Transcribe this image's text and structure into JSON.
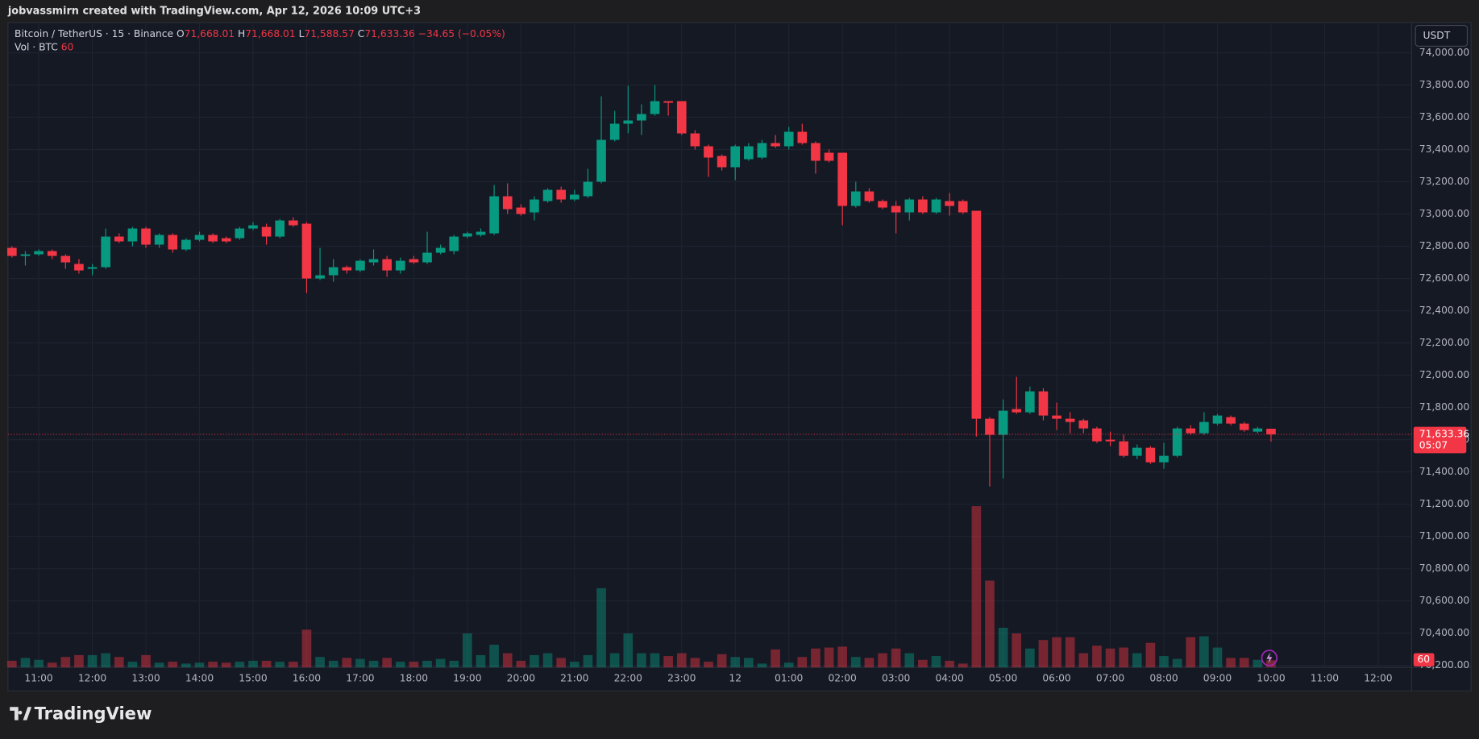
{
  "header": {
    "text": "jobvassmirn created with TradingView.com, Apr 12, 2026 10:09 UTC+3"
  },
  "legend": {
    "symbol": "Bitcoin / TetherUS · 15 · Binance",
    "o_key": "O",
    "o": "71,668.01",
    "h_key": "H",
    "h": "71,668.01",
    "l_key": "L",
    "l": "71,588.57",
    "c_key": "C",
    "c": "71,633.36",
    "change": "−34.65 (−0.05%)",
    "volume_name": "Vol · BTC"
  },
  "currency": "USDT",
  "last_price_label": "71,633.36",
  "countdown": "05:07",
  "footer": {
    "brand": "TradingView"
  },
  "chart_data": {
    "type": "candlestick",
    "up_color": "#089981",
    "down_color": "#f23645",
    "grid": true,
    "xlim": [
      -0.3,
      104.5
    ],
    "xticks": [
      {
        "value": 2,
        "label": "11:00"
      },
      {
        "value": 6,
        "label": "12:00"
      },
      {
        "value": 10,
        "label": "13:00"
      },
      {
        "value": 14,
        "label": "14:00"
      },
      {
        "value": 18,
        "label": "15:00"
      },
      {
        "value": 22,
        "label": "16:00"
      },
      {
        "value": 26,
        "label": "17:00"
      },
      {
        "value": 30,
        "label": "18:00"
      },
      {
        "value": 34,
        "label": "19:00"
      },
      {
        "value": 38,
        "label": "20:00"
      },
      {
        "value": 42,
        "label": "21:00"
      },
      {
        "value": 46,
        "label": "22:00"
      },
      {
        "value": 50,
        "label": "23:00"
      },
      {
        "value": 54,
        "label": "12"
      },
      {
        "value": 58,
        "label": "01:00"
      },
      {
        "value": 62,
        "label": "02:00"
      },
      {
        "value": 66,
        "label": "03:00"
      },
      {
        "value": 70,
        "label": "04:00"
      },
      {
        "value": 74,
        "label": "05:00"
      },
      {
        "value": 78,
        "label": "06:00"
      },
      {
        "value": 82,
        "label": "07:00"
      },
      {
        "value": 86,
        "label": "08:00"
      },
      {
        "value": 90,
        "label": "09:00"
      },
      {
        "value": 94,
        "label": "10:00"
      },
      {
        "value": 98,
        "label": "11:00"
      },
      {
        "value": 102,
        "label": "12:00"
      }
    ],
    "ylim": [
      70188,
      74187
    ],
    "yticks": [
      {
        "value": 70200,
        "label": "70,200.00"
      },
      {
        "value": 70400,
        "label": "70,400.00"
      },
      {
        "value": 70600,
        "label": "70,600.00"
      },
      {
        "value": 70800,
        "label": "70,800.00"
      },
      {
        "value": 71000,
        "label": "71,000.00"
      },
      {
        "value": 71200,
        "label": "71,200.00"
      },
      {
        "value": 71400,
        "label": "71,400.00"
      },
      {
        "value": 71600,
        "label": "71,600.00"
      },
      {
        "value": 71800,
        "label": "71,800.00"
      },
      {
        "value": 72000,
        "label": "72,000.00"
      },
      {
        "value": 72200,
        "label": "72,200.00"
      },
      {
        "value": 72400,
        "label": "72,400.00"
      },
      {
        "value": 72600,
        "label": "72,600.00"
      },
      {
        "value": 72800,
        "label": "72,800.00"
      },
      {
        "value": 73000,
        "label": "73,000.00"
      },
      {
        "value": 73200,
        "label": "73,200.00"
      },
      {
        "value": 73400,
        "label": "73,400.00"
      },
      {
        "value": 73600,
        "label": "73,600.00"
      },
      {
        "value": 73800,
        "label": "73,800.00"
      },
      {
        "value": 74000,
        "label": "74,000.00"
      }
    ],
    "open": [
      72790,
      72740,
      72750,
      72770,
      72740,
      72690,
      72660,
      72670,
      72860,
      72830,
      72910,
      72810,
      72870,
      72780,
      72840,
      72870,
      72850,
      72850,
      72910,
      72920,
      72860,
      72960,
      72940,
      72600,
      72620,
      72670,
      72650,
      72700,
      72720,
      72650,
      72720,
      72700,
      72760,
      72770,
      72860,
      72870,
      72880,
      73110,
      73040,
      73010,
      73080,
      73150,
      73090,
      73110,
      73200,
      73460,
      73560,
      73580,
      73620,
      73700,
      73700,
      73500,
      73420,
      73360,
      73290,
      73340,
      73350,
      73440,
      73420,
      73510,
      73440,
      73380,
      73380,
      73050,
      73140,
      73080,
      73050,
      73010,
      73090,
      73010,
      73080,
      73080,
      73020,
      71730,
      71630,
      71790,
      71770,
      71900,
      71750,
      71730,
      71720,
      71670,
      71600,
      71590,
      71500,
      71550,
      71460,
      71500,
      71670,
      71640,
      71700,
      71740,
      71700,
      71650,
      71668.01
    ],
    "high": [
      72800,
      72770,
      72780,
      72780,
      72750,
      72720,
      72690,
      72910,
      72880,
      72920,
      72920,
      72880,
      72880,
      72850,
      72890,
      72880,
      72860,
      72920,
      72950,
      72940,
      72970,
      72980,
      72950,
      72790,
      72720,
      72680,
      72720,
      72780,
      72740,
      72730,
      72740,
      72890,
      72810,
      72870,
      72890,
      72910,
      73180,
      73190,
      73060,
      73110,
      73160,
      73170,
      73150,
      73280,
      73730,
      73640,
      73795,
      73680,
      73800,
      73700,
      73700,
      73520,
      73430,
      73370,
      73430,
      73440,
      73460,
      73490,
      73540,
      73560,
      73450,
      73400,
      73380,
      73200,
      73160,
      73090,
      73080,
      73100,
      73110,
      73100,
      73130,
      73090,
      73020,
      71740,
      71850,
      71990,
      71930,
      71920,
      71830,
      71770,
      71730,
      71680,
      71650,
      71630,
      71570,
      71560,
      71580,
      71680,
      71690,
      71770,
      71760,
      71750,
      71710,
      71680,
      71668.01
    ],
    "low": [
      72730,
      72680,
      72740,
      72720,
      72660,
      72630,
      72620,
      72660,
      72820,
      72800,
      72790,
      72790,
      72760,
      72770,
      72830,
      72820,
      72820,
      72840,
      72900,
      72810,
      72850,
      72920,
      72510,
      72590,
      72580,
      72630,
      72640,
      72680,
      72610,
      72630,
      72690,
      72690,
      72750,
      72750,
      72850,
      72860,
      72870,
      73000,
      72990,
      72960,
      73070,
      73070,
      73080,
      73100,
      73190,
      73450,
      73500,
      73490,
      73610,
      73610,
      73490,
      73400,
      73230,
      73270,
      73210,
      73330,
      73340,
      73410,
      73400,
      73430,
      73250,
      73320,
      72930,
      73040,
      73070,
      73030,
      72880,
      72960,
      73000,
      73000,
      72990,
      73000,
      71620,
      71310,
      71360,
      71760,
      71760,
      71720,
      71660,
      71640,
      71640,
      71580,
      71560,
      71490,
      71480,
      71450,
      71420,
      71490,
      71630,
      71630,
      71690,
      71690,
      71650,
      71640,
      71588.57
    ],
    "close": [
      72740,
      72750,
      72770,
      72740,
      72700,
      72650,
      72670,
      72860,
      72830,
      72910,
      72810,
      72870,
      72780,
      72840,
      72870,
      72830,
      72830,
      72910,
      72930,
      72860,
      72960,
      72930,
      72600,
      72620,
      72670,
      72650,
      72710,
      72720,
      72650,
      72710,
      72700,
      72760,
      72790,
      72860,
      72880,
      72890,
      73110,
      73030,
      73000,
      73090,
      73150,
      73090,
      73120,
      73200,
      73460,
      73560,
      73580,
      73620,
      73700,
      73690,
      73500,
      73420,
      73350,
      73290,
      73420,
      73420,
      73440,
      73420,
      73510,
      73440,
      73330,
      73330,
      73050,
      73140,
      73080,
      73040,
      73010,
      73090,
      73010,
      73090,
      73050,
      73010,
      71730,
      71630,
      71780,
      71770,
      71900,
      71750,
      71730,
      71710,
      71670,
      71590,
      71590,
      71500,
      71550,
      71460,
      71500,
      71670,
      71640,
      71710,
      71750,
      71700,
      71660,
      71670,
      71633.36
    ],
    "volume": [
      56,
      80,
      64,
      40,
      88,
      104,
      104,
      120,
      88,
      48,
      104,
      40,
      48,
      32,
      40,
      48,
      40,
      48,
      56,
      56,
      48,
      48,
      320,
      88,
      56,
      80,
      72,
      56,
      80,
      48,
      48,
      56,
      72,
      56,
      288,
      104,
      192,
      120,
      56,
      104,
      120,
      80,
      48,
      104,
      672,
      120,
      288,
      120,
      120,
      96,
      120,
      80,
      48,
      112,
      88,
      80,
      32,
      152,
      40,
      88,
      160,
      168,
      176,
      88,
      80,
      120,
      160,
      120,
      64,
      96,
      56,
      32,
      1368,
      736,
      336,
      288,
      160,
      232,
      256,
      256,
      120,
      184,
      160,
      168,
      120,
      208,
      96,
      72,
      256,
      264,
      168,
      80,
      80,
      64,
      60
    ]
  }
}
